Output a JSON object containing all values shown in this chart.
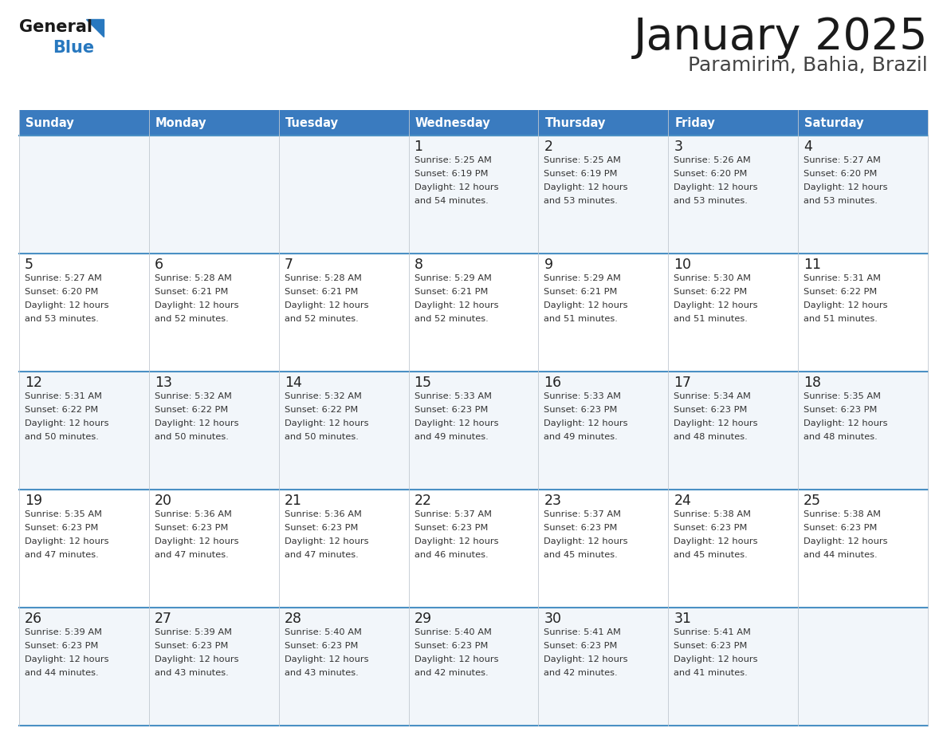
{
  "title": "January 2025",
  "subtitle": "Paramirim, Bahia, Brazil",
  "days_of_week": [
    "Sunday",
    "Monday",
    "Tuesday",
    "Wednesday",
    "Thursday",
    "Friday",
    "Saturday"
  ],
  "header_bg": "#3a7bbf",
  "header_text": "#ffffff",
  "row_bg": "#ffffff",
  "row_bg_alt": "#f2f6fa",
  "cell_border_color": "#4a90c4",
  "day_number_color": "#222222",
  "info_text_color": "#333333",
  "title_color": "#1a1a1a",
  "subtitle_color": "#444444",
  "logo_general_color": "#1a1a1a",
  "logo_blue_color": "#2878bf",
  "calendar_data": [
    [
      null,
      null,
      null,
      {
        "day": 1,
        "sunrise": "5:25 AM",
        "sunset": "6:19 PM",
        "daylight_hrs": 12,
        "daylight_min": 54
      },
      {
        "day": 2,
        "sunrise": "5:25 AM",
        "sunset": "6:19 PM",
        "daylight_hrs": 12,
        "daylight_min": 53
      },
      {
        "day": 3,
        "sunrise": "5:26 AM",
        "sunset": "6:20 PM",
        "daylight_hrs": 12,
        "daylight_min": 53
      },
      {
        "day": 4,
        "sunrise": "5:27 AM",
        "sunset": "6:20 PM",
        "daylight_hrs": 12,
        "daylight_min": 53
      }
    ],
    [
      {
        "day": 5,
        "sunrise": "5:27 AM",
        "sunset": "6:20 PM",
        "daylight_hrs": 12,
        "daylight_min": 53
      },
      {
        "day": 6,
        "sunrise": "5:28 AM",
        "sunset": "6:21 PM",
        "daylight_hrs": 12,
        "daylight_min": 52
      },
      {
        "day": 7,
        "sunrise": "5:28 AM",
        "sunset": "6:21 PM",
        "daylight_hrs": 12,
        "daylight_min": 52
      },
      {
        "day": 8,
        "sunrise": "5:29 AM",
        "sunset": "6:21 PM",
        "daylight_hrs": 12,
        "daylight_min": 52
      },
      {
        "day": 9,
        "sunrise": "5:29 AM",
        "sunset": "6:21 PM",
        "daylight_hrs": 12,
        "daylight_min": 51
      },
      {
        "day": 10,
        "sunrise": "5:30 AM",
        "sunset": "6:22 PM",
        "daylight_hrs": 12,
        "daylight_min": 51
      },
      {
        "day": 11,
        "sunrise": "5:31 AM",
        "sunset": "6:22 PM",
        "daylight_hrs": 12,
        "daylight_min": 51
      }
    ],
    [
      {
        "day": 12,
        "sunrise": "5:31 AM",
        "sunset": "6:22 PM",
        "daylight_hrs": 12,
        "daylight_min": 50
      },
      {
        "day": 13,
        "sunrise": "5:32 AM",
        "sunset": "6:22 PM",
        "daylight_hrs": 12,
        "daylight_min": 50
      },
      {
        "day": 14,
        "sunrise": "5:32 AM",
        "sunset": "6:22 PM",
        "daylight_hrs": 12,
        "daylight_min": 50
      },
      {
        "day": 15,
        "sunrise": "5:33 AM",
        "sunset": "6:23 PM",
        "daylight_hrs": 12,
        "daylight_min": 49
      },
      {
        "day": 16,
        "sunrise": "5:33 AM",
        "sunset": "6:23 PM",
        "daylight_hrs": 12,
        "daylight_min": 49
      },
      {
        "day": 17,
        "sunrise": "5:34 AM",
        "sunset": "6:23 PM",
        "daylight_hrs": 12,
        "daylight_min": 48
      },
      {
        "day": 18,
        "sunrise": "5:35 AM",
        "sunset": "6:23 PM",
        "daylight_hrs": 12,
        "daylight_min": 48
      }
    ],
    [
      {
        "day": 19,
        "sunrise": "5:35 AM",
        "sunset": "6:23 PM",
        "daylight_hrs": 12,
        "daylight_min": 47
      },
      {
        "day": 20,
        "sunrise": "5:36 AM",
        "sunset": "6:23 PM",
        "daylight_hrs": 12,
        "daylight_min": 47
      },
      {
        "day": 21,
        "sunrise": "5:36 AM",
        "sunset": "6:23 PM",
        "daylight_hrs": 12,
        "daylight_min": 47
      },
      {
        "day": 22,
        "sunrise": "5:37 AM",
        "sunset": "6:23 PM",
        "daylight_hrs": 12,
        "daylight_min": 46
      },
      {
        "day": 23,
        "sunrise": "5:37 AM",
        "sunset": "6:23 PM",
        "daylight_hrs": 12,
        "daylight_min": 45
      },
      {
        "day": 24,
        "sunrise": "5:38 AM",
        "sunset": "6:23 PM",
        "daylight_hrs": 12,
        "daylight_min": 45
      },
      {
        "day": 25,
        "sunrise": "5:38 AM",
        "sunset": "6:23 PM",
        "daylight_hrs": 12,
        "daylight_min": 44
      }
    ],
    [
      {
        "day": 26,
        "sunrise": "5:39 AM",
        "sunset": "6:23 PM",
        "daylight_hrs": 12,
        "daylight_min": 44
      },
      {
        "day": 27,
        "sunrise": "5:39 AM",
        "sunset": "6:23 PM",
        "daylight_hrs": 12,
        "daylight_min": 43
      },
      {
        "day": 28,
        "sunrise": "5:40 AM",
        "sunset": "6:23 PM",
        "daylight_hrs": 12,
        "daylight_min": 43
      },
      {
        "day": 29,
        "sunrise": "5:40 AM",
        "sunset": "6:23 PM",
        "daylight_hrs": 12,
        "daylight_min": 42
      },
      {
        "day": 30,
        "sunrise": "5:41 AM",
        "sunset": "6:23 PM",
        "daylight_hrs": 12,
        "daylight_min": 42
      },
      {
        "day": 31,
        "sunrise": "5:41 AM",
        "sunset": "6:23 PM",
        "daylight_hrs": 12,
        "daylight_min": 41
      },
      null
    ]
  ]
}
